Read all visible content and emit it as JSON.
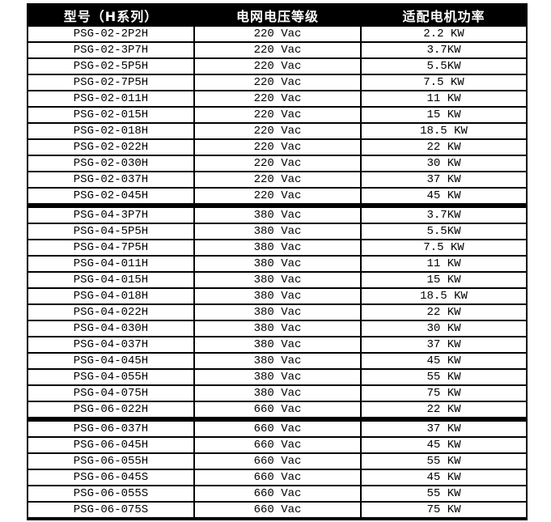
{
  "colors": {
    "header_bg": "#000000",
    "header_text": "#ffffff",
    "border": "#000000",
    "row_bg": "#ffffff",
    "row_text": "#000000"
  },
  "table": {
    "columns": [
      {
        "label": "型号（H系列）"
      },
      {
        "label": "电网电压等级"
      },
      {
        "label": "适配电机功率"
      }
    ],
    "groups": [
      {
        "rows": [
          {
            "model": "PSG-02-2P2H",
            "voltage": "220 Vac",
            "power": "2.2 KW"
          },
          {
            "model": "PSG-02-3P7H",
            "voltage": "220 Vac",
            "power": "3.7KW"
          },
          {
            "model": "PSG-02-5P5H",
            "voltage": "220 Vac",
            "power": "5.5KW"
          },
          {
            "model": "PSG-02-7P5H",
            "voltage": "220 Vac",
            "power": "7.5 KW"
          },
          {
            "model": "PSG-02-011H",
            "voltage": "220 Vac",
            "power": "11 KW"
          },
          {
            "model": "PSG-02-015H",
            "voltage": "220 Vac",
            "power": "15 KW"
          },
          {
            "model": "PSG-02-018H",
            "voltage": "220 Vac",
            "power": "18.5 KW"
          },
          {
            "model": "PSG-02-022H",
            "voltage": "220 Vac",
            "power": "22 KW"
          },
          {
            "model": "PSG-02-030H",
            "voltage": "220 Vac",
            "power": "30 KW"
          },
          {
            "model": "PSG-02-037H",
            "voltage": "220 Vac",
            "power": "37 KW"
          },
          {
            "model": "PSG-02-045H",
            "voltage": "220 Vac",
            "power": "45 KW"
          }
        ]
      },
      {
        "rows": [
          {
            "model": "PSG-04-3P7H",
            "voltage": "380 Vac",
            "power": "3.7KW"
          },
          {
            "model": "PSG-04-5P5H",
            "voltage": "380 Vac",
            "power": "5.5KW"
          },
          {
            "model": "PSG-04-7P5H",
            "voltage": "380 Vac",
            "power": "7.5 KW"
          },
          {
            "model": "PSG-04-011H",
            "voltage": "380 Vac",
            "power": "11 KW"
          },
          {
            "model": "PSG-04-015H",
            "voltage": "380 Vac",
            "power": "15 KW"
          },
          {
            "model": "PSG-04-018H",
            "voltage": "380 Vac",
            "power": "18.5 KW"
          },
          {
            "model": "PSG-04-022H",
            "voltage": "380 Vac",
            "power": "22 KW"
          },
          {
            "model": "PSG-04-030H",
            "voltage": "380 Vac",
            "power": "30 KW"
          },
          {
            "model": "PSG-04-037H",
            "voltage": "380 Vac",
            "power": "37 KW"
          },
          {
            "model": "PSG-04-045H",
            "voltage": "380 Vac",
            "power": "45 KW"
          },
          {
            "model": "PSG-04-055H",
            "voltage": "380 Vac",
            "power": "55 KW"
          },
          {
            "model": "PSG-04-075H",
            "voltage": "380 Vac",
            "power": "75 KW"
          },
          {
            "model": "PSG-06-022H",
            "voltage": "660 Vac",
            "power": "22 KW"
          }
        ]
      },
      {
        "rows": [
          {
            "model": "PSG-06-037H",
            "voltage": "660 Vac",
            "power": "37 KW"
          },
          {
            "model": "PSG-06-045H",
            "voltage": "660 Vac",
            "power": "45 KW"
          },
          {
            "model": "PSG-06-055H",
            "voltage": "660 Vac",
            "power": "55 KW"
          },
          {
            "model": "PSG-06-045S",
            "voltage": "660 Vac",
            "power": "45 KW"
          },
          {
            "model": "PSG-06-055S",
            "voltage": "660 Vac",
            "power": "55 KW"
          },
          {
            "model": "PSG-06-075S",
            "voltage": "660 Vac",
            "power": "75 KW"
          }
        ]
      }
    ]
  }
}
